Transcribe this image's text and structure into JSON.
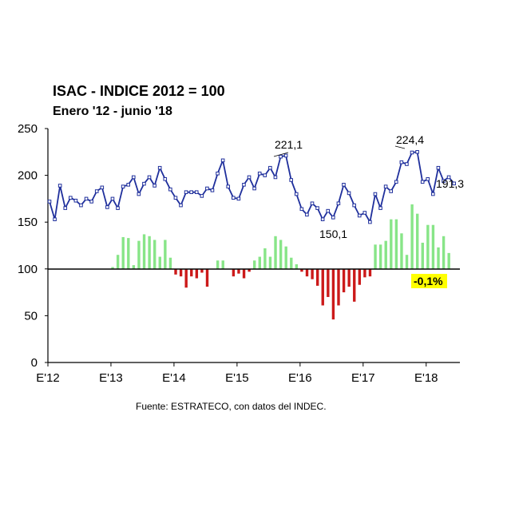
{
  "colors": {
    "line": "#1f2f9c",
    "bar_positive": "#88e588",
    "bar_negative": "#cc1a1a",
    "highlight": "#ffff00",
    "axis": "#000000"
  },
  "chart_data": {
    "type": "bar",
    "title": "ISAC - INDICE 2012 = 100",
    "subtitle": "Enero '12 - junio '18",
    "source": "Fuente: ESTRATECO, con datos del INDEC.",
    "ylim": [
      0,
      250
    ],
    "yticks": [
      0,
      50,
      100,
      150,
      200,
      250
    ],
    "grid": false,
    "x_tick_labels": [
      "E'12",
      "E'13",
      "E'14",
      "E'15",
      "E'16",
      "E'17",
      "E'18"
    ],
    "months": [
      "2012-01",
      "2012-02",
      "2012-03",
      "2012-04",
      "2012-05",
      "2012-06",
      "2012-07",
      "2012-08",
      "2012-09",
      "2012-10",
      "2012-11",
      "2012-12",
      "2013-01",
      "2013-02",
      "2013-03",
      "2013-04",
      "2013-05",
      "2013-06",
      "2013-07",
      "2013-08",
      "2013-09",
      "2013-10",
      "2013-11",
      "2013-12",
      "2014-01",
      "2014-02",
      "2014-03",
      "2014-04",
      "2014-05",
      "2014-06",
      "2014-07",
      "2014-08",
      "2014-09",
      "2014-10",
      "2014-11",
      "2014-12",
      "2015-01",
      "2015-02",
      "2015-03",
      "2015-04",
      "2015-05",
      "2015-06",
      "2015-07",
      "2015-08",
      "2015-09",
      "2015-10",
      "2015-11",
      "2015-12",
      "2016-01",
      "2016-02",
      "2016-03",
      "2016-04",
      "2016-05",
      "2016-06",
      "2016-07",
      "2016-08",
      "2016-09",
      "2016-10",
      "2016-11",
      "2016-12",
      "2017-01",
      "2017-02",
      "2017-03",
      "2017-04",
      "2017-05",
      "2017-06",
      "2017-07",
      "2017-08",
      "2017-09",
      "2017-10",
      "2017-11",
      "2017-12",
      "2018-01",
      "2018-02",
      "2018-03",
      "2018-04",
      "2018-05",
      "2018-06"
    ],
    "series": [
      {
        "type": "line",
        "values": [
          172,
          153,
          189,
          165,
          176,
          173,
          168,
          175,
          172,
          183,
          187,
          166,
          175,
          165,
          188,
          190,
          198,
          180,
          191,
          198,
          189,
          208,
          196,
          185,
          176,
          168,
          182,
          182,
          182,
          178,
          186,
          184,
          202,
          216,
          188,
          176,
          175,
          190,
          198,
          186,
          202,
          200,
          208,
          198,
          220,
          221.1,
          195,
          180,
          164,
          158,
          170,
          165,
          153,
          162,
          155,
          170,
          190,
          181,
          168,
          157,
          160,
          150.1,
          180,
          165,
          188,
          183,
          193,
          214,
          212,
          224.4,
          225,
          193,
          196,
          180,
          208,
          194,
          198,
          191.3
        ]
      },
      {
        "type": "bar",
        "values": [
          null,
          null,
          null,
          null,
          null,
          null,
          null,
          null,
          null,
          null,
          null,
          null,
          102,
          115,
          134,
          133,
          104,
          130,
          137,
          135,
          131,
          113,
          131,
          112,
          94,
          92,
          80,
          92,
          90,
          96,
          81,
          null,
          109,
          109,
          null,
          92,
          95,
          90,
          97,
          109,
          113,
          122,
          113,
          135,
          131,
          124,
          112,
          105,
          97,
          92,
          89,
          82,
          61,
          70,
          46,
          61,
          75,
          81,
          65,
          83,
          91,
          92,
          126,
          126,
          130,
          153,
          153,
          138,
          115,
          169,
          159,
          128,
          147,
          147,
          123,
          135,
          117,
          100
        ]
      }
    ],
    "annotations": [
      {
        "text": "221,1"
      },
      {
        "text": "224,4"
      },
      {
        "text": "150,1"
      },
      {
        "text": "191,3"
      },
      {
        "text": "-0,1%"
      }
    ]
  }
}
